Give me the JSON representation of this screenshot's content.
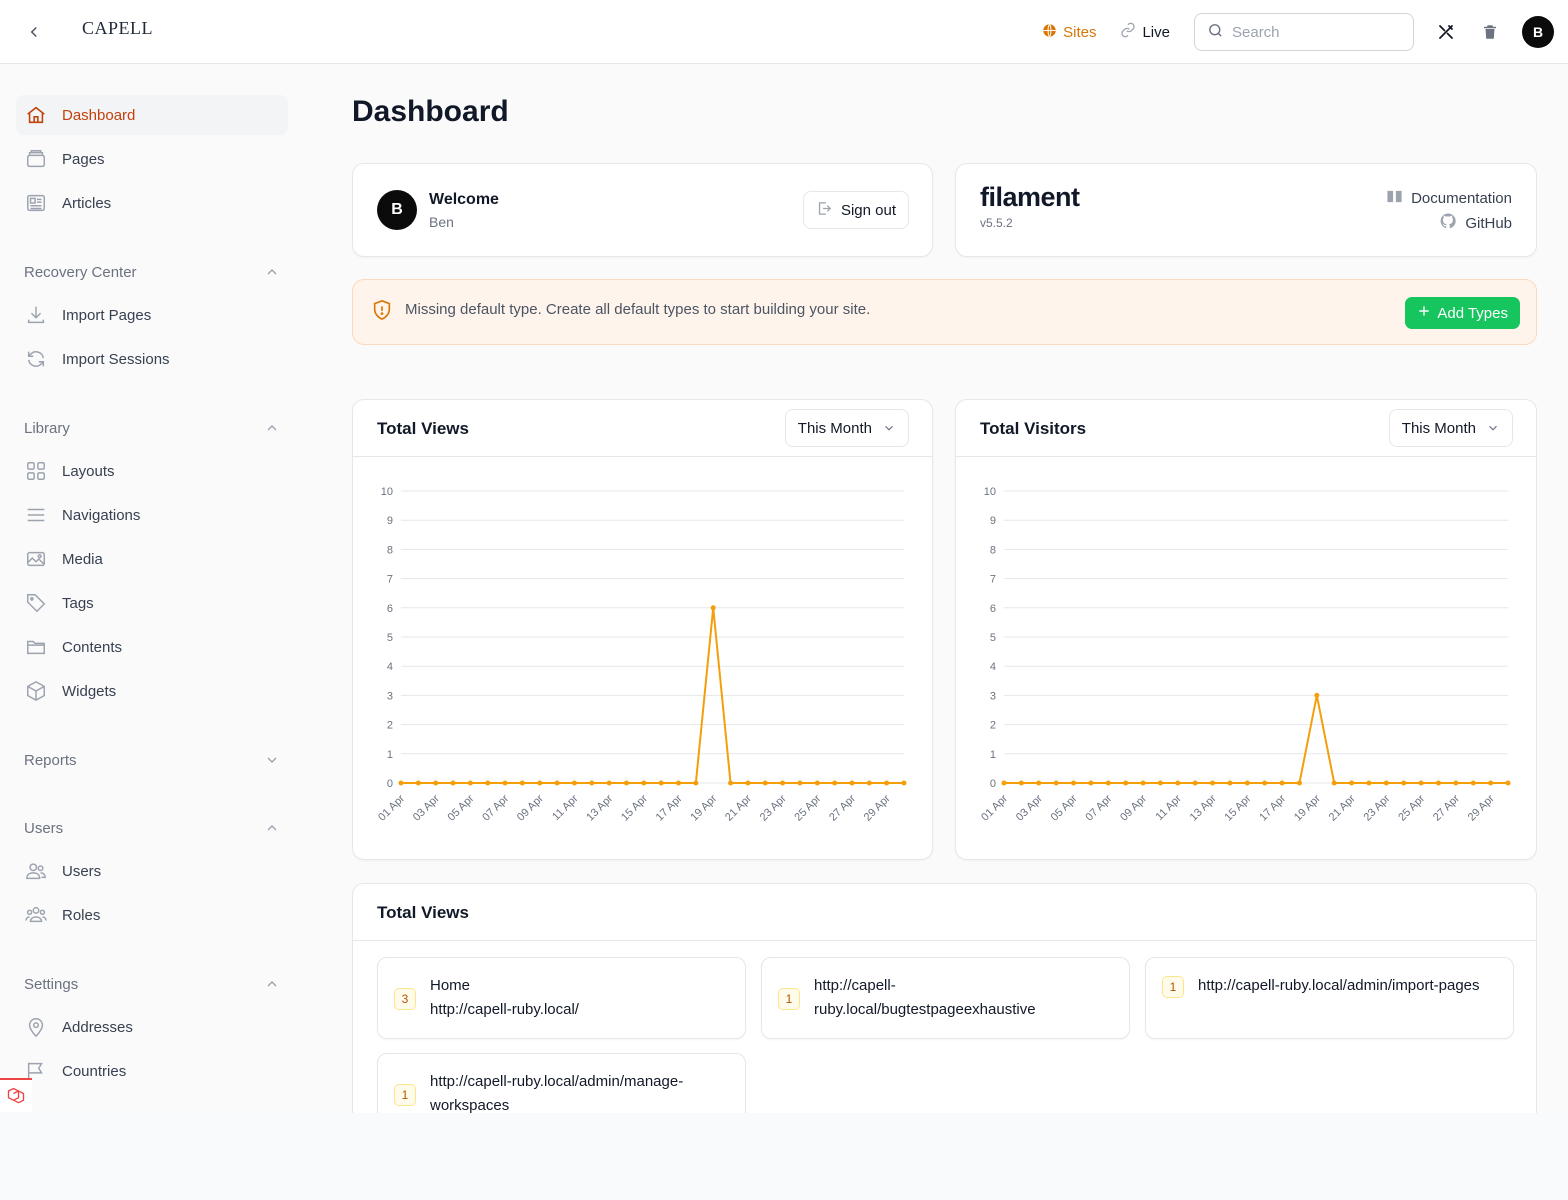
{
  "header": {
    "logo": "CAPELL",
    "sites_label": "Sites",
    "live_label": "Live",
    "search_placeholder": "Search",
    "avatar_initial": "B",
    "accent_color": "#d97706"
  },
  "sidebar": {
    "items": [
      {
        "label": "Dashboard",
        "icon": "home-icon",
        "active": true
      },
      {
        "label": "Pages",
        "icon": "pages-icon"
      },
      {
        "label": "Articles",
        "icon": "articles-icon"
      }
    ],
    "groups": [
      {
        "label": "Recovery Center",
        "expanded": true,
        "items": [
          {
            "label": "Import Pages",
            "icon": "download-icon"
          },
          {
            "label": "Import Sessions",
            "icon": "refresh-icon"
          }
        ]
      },
      {
        "label": "Library",
        "expanded": true,
        "items": [
          {
            "label": "Layouts",
            "icon": "grid-icon"
          },
          {
            "label": "Navigations",
            "icon": "menu-lines-icon"
          },
          {
            "label": "Media",
            "icon": "image-icon"
          },
          {
            "label": "Tags",
            "icon": "tag-icon"
          },
          {
            "label": "Contents",
            "icon": "folder-icon"
          },
          {
            "label": "Widgets",
            "icon": "cube-icon"
          }
        ]
      },
      {
        "label": "Reports",
        "expanded": false,
        "items": []
      },
      {
        "label": "Users",
        "expanded": true,
        "items": [
          {
            "label": "Users",
            "icon": "users-icon"
          },
          {
            "label": "Roles",
            "icon": "user-group-icon"
          }
        ]
      },
      {
        "label": "Settings",
        "expanded": true,
        "items": [
          {
            "label": "Addresses",
            "icon": "map-pin-icon"
          },
          {
            "label": "Countries",
            "icon": "flag-icon"
          }
        ]
      }
    ]
  },
  "main": {
    "title": "Dashboard",
    "welcome": {
      "title": "Welcome",
      "name": "Ben",
      "avatar_initial": "B",
      "signout_label": "Sign out"
    },
    "filament": {
      "logo": "filament",
      "version": "v5.5.2",
      "docs_label": "Documentation",
      "github_label": "GitHub"
    },
    "alert": {
      "text": "Missing default type. Create all default types to start building your site.",
      "button_label": "Add Types",
      "button_color": "#16c55e"
    },
    "views_list": {
      "title": "Total Views",
      "items": [
        {
          "count": "3",
          "text": "Home\nhttp://capell-ruby.local/"
        },
        {
          "count": "1",
          "text": "http://capell-ruby.local/bugtestpageexhaustive"
        },
        {
          "count": "1",
          "text": "http://capell-ruby.local/admin/import-pages"
        },
        {
          "count": "1",
          "text": "http://capell-ruby.local/admin/manage-workspaces"
        }
      ]
    }
  },
  "chart_data": [
    {
      "type": "line",
      "title": "Total Views",
      "filter_label": "This Month",
      "x": [
        "01 Apr",
        "02 Apr",
        "03 Apr",
        "04 Apr",
        "05 Apr",
        "06 Apr",
        "07 Apr",
        "08 Apr",
        "09 Apr",
        "10 Apr",
        "11 Apr",
        "12 Apr",
        "13 Apr",
        "14 Apr",
        "15 Apr",
        "16 Apr",
        "17 Apr",
        "18 Apr",
        "19 Apr",
        "20 Apr",
        "21 Apr",
        "22 Apr",
        "23 Apr",
        "24 Apr",
        "25 Apr",
        "26 Apr",
        "27 Apr",
        "28 Apr",
        "29 Apr",
        "30 Apr"
      ],
      "values": [
        0,
        0,
        0,
        0,
        0,
        0,
        0,
        0,
        0,
        0,
        0,
        0,
        0,
        0,
        0,
        0,
        0,
        0,
        6,
        0,
        0,
        0,
        0,
        0,
        0,
        0,
        0,
        0,
        0,
        0
      ],
      "ylim": [
        0,
        10
      ],
      "yticks": [
        "0",
        "1",
        "2",
        "3",
        "4",
        "5",
        "6",
        "7",
        "8",
        "9",
        "10"
      ],
      "xticks": [
        "01 Apr",
        "03 Apr",
        "05 Apr",
        "07 Apr",
        "09 Apr",
        "11 Apr",
        "13 Apr",
        "15 Apr",
        "17 Apr",
        "19 Apr",
        "21 Apr",
        "23 Apr",
        "25 Apr",
        "27 Apr",
        "29 Apr"
      ],
      "color": "#f59e0b",
      "grid": true
    },
    {
      "type": "line",
      "title": "Total Visitors",
      "filter_label": "This Month",
      "x": [
        "01 Apr",
        "02 Apr",
        "03 Apr",
        "04 Apr",
        "05 Apr",
        "06 Apr",
        "07 Apr",
        "08 Apr",
        "09 Apr",
        "10 Apr",
        "11 Apr",
        "12 Apr",
        "13 Apr",
        "14 Apr",
        "15 Apr",
        "16 Apr",
        "17 Apr",
        "18 Apr",
        "19 Apr",
        "20 Apr",
        "21 Apr",
        "22 Apr",
        "23 Apr",
        "24 Apr",
        "25 Apr",
        "26 Apr",
        "27 Apr",
        "28 Apr",
        "29 Apr",
        "30 Apr"
      ],
      "values": [
        0,
        0,
        0,
        0,
        0,
        0,
        0,
        0,
        0,
        0,
        0,
        0,
        0,
        0,
        0,
        0,
        0,
        0,
        3,
        0,
        0,
        0,
        0,
        0,
        0,
        0,
        0,
        0,
        0,
        0
      ],
      "ylim": [
        0,
        10
      ],
      "yticks": [
        "0",
        "1",
        "2",
        "3",
        "4",
        "5",
        "6",
        "7",
        "8",
        "9",
        "10"
      ],
      "xticks": [
        "01 Apr",
        "03 Apr",
        "05 Apr",
        "07 Apr",
        "09 Apr",
        "11 Apr",
        "13 Apr",
        "15 Apr",
        "17 Apr",
        "19 Apr",
        "21 Apr",
        "23 Apr",
        "25 Apr",
        "27 Apr",
        "29 Apr"
      ],
      "color": "#f59e0b",
      "grid": true
    }
  ]
}
